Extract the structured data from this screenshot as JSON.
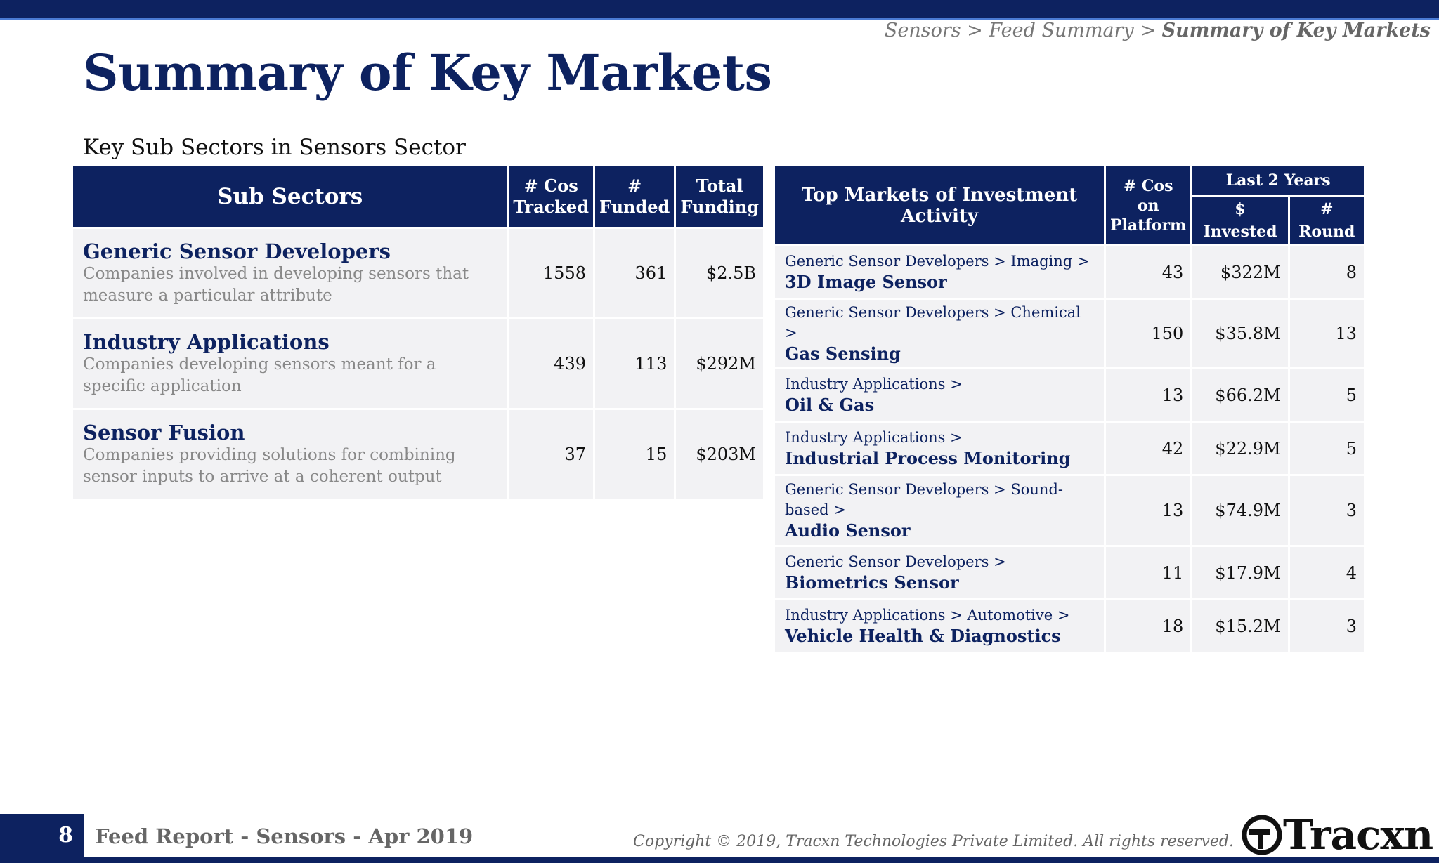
{
  "breadcrumb": {
    "part1": "Sensors > Feed Summary > ",
    "current": "Summary of Key Markets"
  },
  "page_title": "Summary of Key Markets",
  "section_subtitle": "Key Sub Sectors in Sensors Sector",
  "left_table": {
    "headers": {
      "sub_sectors": "Sub Sectors",
      "cos_tracked_1": "# Cos",
      "cos_tracked_2": "Tracked",
      "funded_1": "#",
      "funded_2": "Funded",
      "funding_1": "Total",
      "funding_2": "Funding"
    },
    "rows": [
      {
        "name": "Generic Sensor Developers",
        "desc": "Companies involved in developing sensors that measure a particular attribute",
        "tracked": "1558",
        "funded": "361",
        "funding": "$2.5B"
      },
      {
        "name": "Industry Applications",
        "desc": "Companies developing sensors meant for a specific application",
        "tracked": "439",
        "funded": "113",
        "funding": "$292M"
      },
      {
        "name": "Sensor Fusion",
        "desc": "Companies providing solutions for combining sensor inputs to arrive at a coherent output",
        "tracked": "37",
        "funded": "15",
        "funding": "$203M"
      }
    ]
  },
  "right_table": {
    "headers": {
      "markets": "Top Markets of Investment Activity",
      "cos_1": "# Cos on",
      "cos_2": "Platform",
      "last2": "Last 2 Years",
      "invested": "$ Invested",
      "round": "# Round"
    },
    "rows": [
      {
        "path": "Generic Sensor Developers > Imaging >",
        "name": "3D Image Sensor",
        "cos": "43",
        "invested": "$322M",
        "round": "8"
      },
      {
        "path": "Generic Sensor Developers > Chemical >",
        "name": "Gas Sensing",
        "cos": "150",
        "invested": "$35.8M",
        "round": "13"
      },
      {
        "path": "Industry Applications >",
        "name": "Oil & Gas",
        "cos": "13",
        "invested": "$66.2M",
        "round": "5"
      },
      {
        "path": "Industry Applications >",
        "name": "Industrial Process Monitoring",
        "cos": "42",
        "invested": "$22.9M",
        "round": "5"
      },
      {
        "path": "Generic Sensor Developers > Sound-based >",
        "name": "Audio Sensor",
        "cos": "13",
        "invested": "$74.9M",
        "round": "3"
      },
      {
        "path": "Generic Sensor Developers >",
        "name": "Biometrics Sensor",
        "cos": "11",
        "invested": "$17.9M",
        "round": "4"
      },
      {
        "path": "Industry Applications > Automotive >",
        "name": "Vehicle Health & Diagnostics",
        "cos": "18",
        "invested": "$15.2M",
        "round": "3"
      }
    ]
  },
  "footer": {
    "page_number": "8",
    "label": "Feed Report - Sensors - Apr 2019",
    "copyright": "Copyright © 2019, Tracxn Technologies Private Limited. All rights reserved.",
    "logo_text": "Tracxn"
  },
  "colors": {
    "brand_navy": "#0d2260",
    "accent_blue": "#4a7bd4",
    "row_bg": "#f2f2f4"
  }
}
